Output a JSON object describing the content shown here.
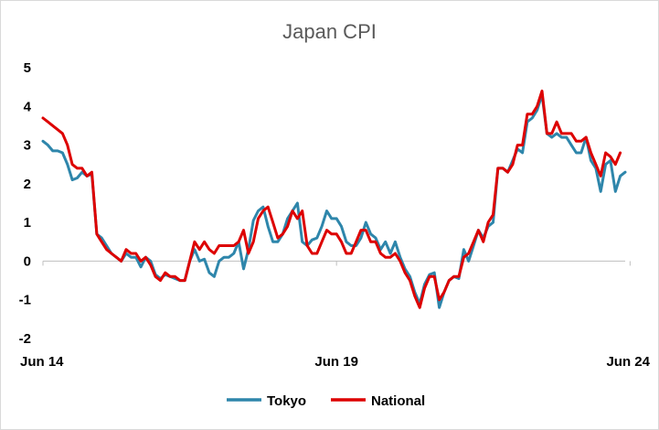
{
  "chart_data": {
    "type": "line",
    "title": "Japan CPI",
    "xlabel": "",
    "ylabel": "",
    "ylim": [
      -2,
      5
    ],
    "yticks": [
      -2,
      -1,
      0,
      1,
      2,
      3,
      4,
      5
    ],
    "x_tick_labels": [
      "Jun 14",
      "Jun 19",
      "Jun 24"
    ],
    "x_tick_positions": [
      0,
      60,
      120
    ],
    "legend": "bottom-center",
    "grid": false,
    "series": [
      {
        "name": "Tokyo",
        "color": "#2E86AB",
        "values": [
          3.1,
          3.0,
          2.85,
          2.85,
          2.8,
          2.5,
          2.1,
          2.15,
          2.3,
          2.2,
          2.25,
          0.7,
          0.6,
          0.4,
          0.2,
          0.1,
          0.0,
          0.2,
          0.1,
          0.1,
          -0.15,
          0.1,
          0.0,
          -0.35,
          -0.45,
          -0.35,
          -0.4,
          -0.45,
          -0.5,
          -0.5,
          0.0,
          0.3,
          0.0,
          0.05,
          -0.3,
          -0.4,
          0.0,
          0.1,
          0.1,
          0.2,
          0.5,
          -0.2,
          0.3,
          1.05,
          1.3,
          1.4,
          0.9,
          0.5,
          0.5,
          0.7,
          1.1,
          1.3,
          1.5,
          0.5,
          0.4,
          0.55,
          0.6,
          0.9,
          1.3,
          1.1,
          1.1,
          0.9,
          0.5,
          0.4,
          0.4,
          0.6,
          1.0,
          0.7,
          0.6,
          0.3,
          0.5,
          0.2,
          0.5,
          0.1,
          -0.2,
          -0.4,
          -0.8,
          -1.1,
          -0.6,
          -0.35,
          -0.3,
          -1.2,
          -0.8,
          -0.5,
          -0.4,
          -0.45,
          0.3,
          0.0,
          0.4,
          0.8,
          0.6,
          0.9,
          1.0,
          2.4,
          2.4,
          2.3,
          2.6,
          2.9,
          2.8,
          3.6,
          3.7,
          3.9,
          4.3,
          3.3,
          3.2,
          3.3,
          3.2,
          3.2,
          3.0,
          2.8,
          2.8,
          3.2,
          2.6,
          2.4,
          1.8,
          2.5,
          2.6,
          1.8,
          2.2,
          2.3
        ]
      },
      {
        "name": "National",
        "color": "#DD0000",
        "values": [
          3.7,
          3.6,
          3.5,
          3.4,
          3.3,
          3.0,
          2.5,
          2.4,
          2.4,
          2.2,
          2.3,
          0.7,
          0.5,
          0.3,
          0.2,
          0.1,
          0.0,
          0.3,
          0.2,
          0.2,
          0.0,
          0.1,
          -0.1,
          -0.4,
          -0.5,
          -0.3,
          -0.4,
          -0.4,
          -0.5,
          -0.5,
          0.0,
          0.5,
          0.3,
          0.5,
          0.3,
          0.2,
          0.4,
          0.4,
          0.4,
          0.4,
          0.5,
          0.8,
          0.2,
          0.5,
          1.1,
          1.3,
          1.4,
          1.0,
          0.6,
          0.7,
          0.9,
          1.3,
          1.1,
          1.3,
          0.4,
          0.2,
          0.2,
          0.5,
          0.8,
          0.7,
          0.7,
          0.5,
          0.2,
          0.2,
          0.5,
          0.8,
          0.8,
          0.5,
          0.5,
          0.2,
          0.1,
          0.1,
          0.2,
          0.0,
          -0.3,
          -0.5,
          -0.9,
          -1.2,
          -0.7,
          -0.4,
          -0.4,
          -1.0,
          -0.8,
          -0.5,
          -0.4,
          -0.4,
          0.1,
          0.2,
          0.5,
          0.8,
          0.5,
          1.0,
          1.2,
          2.4,
          2.4,
          2.3,
          2.5,
          3.0,
          3.0,
          3.8,
          3.8,
          4.0,
          4.4,
          3.3,
          3.3,
          3.6,
          3.3,
          3.3,
          3.3,
          3.1,
          3.1,
          3.2,
          2.8,
          2.5,
          2.2,
          2.8,
          2.7,
          2.5,
          2.8
        ]
      }
    ]
  }
}
